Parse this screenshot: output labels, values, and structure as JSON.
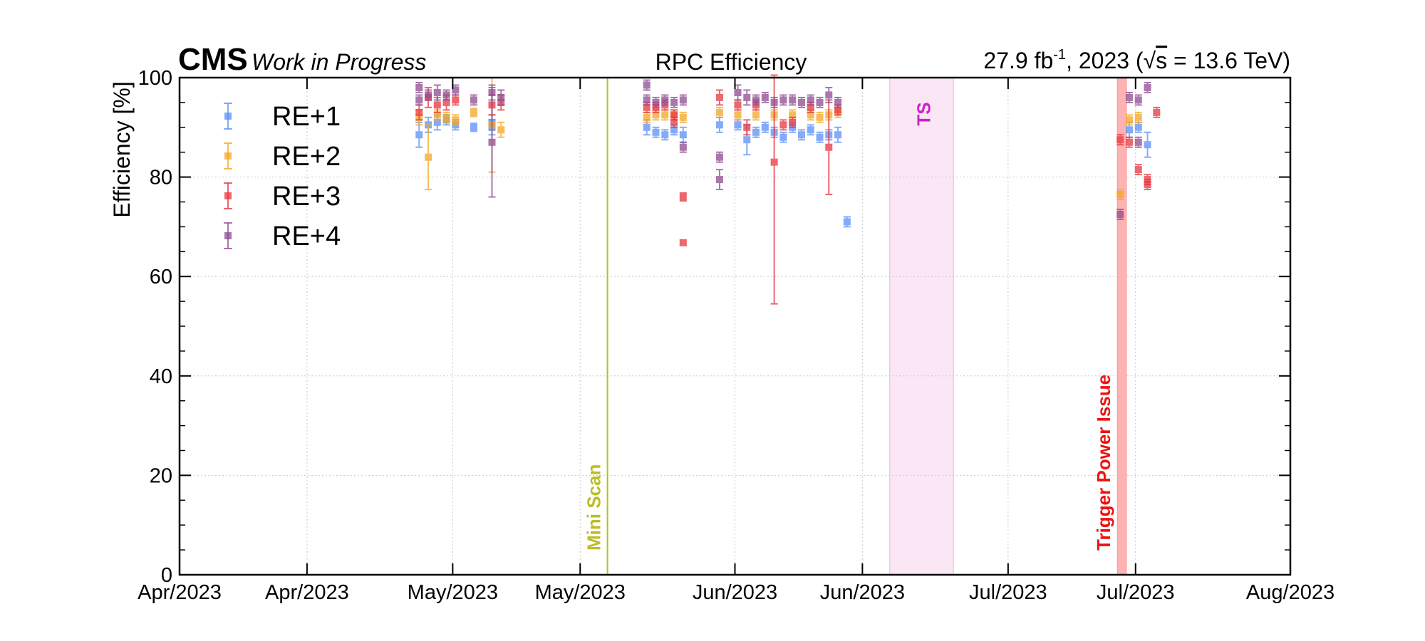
{
  "chart_data": {
    "type": "scatter",
    "title": "RPC Efficiency",
    "experiment": "CMS",
    "experiment_note": "Work in Progress",
    "lumi_prefix": "27.9 fb",
    "lumi_sup": "-1",
    "lumi_mid": ", 2023 (",
    "sqrt_arg": "s",
    "lumi_energy": " = 13.6 TeV)",
    "ylabel": "Efficiency [%]",
    "xlabel": "",
    "ylim": [
      0,
      100
    ],
    "xlim": [
      "2023-04-01",
      "2023-08-01"
    ],
    "y_ticks": [
      "0",
      "20",
      "40",
      "60",
      "80",
      "100"
    ],
    "x_ticks": [
      {
        "date": "2023-04-01",
        "label": "Apr/2023"
      },
      {
        "date": "2023-04-15",
        "label": "Apr/2023"
      },
      {
        "date": "2023-05-01",
        "label": "May/2023"
      },
      {
        "date": "2023-05-15",
        "label": "May/2023"
      },
      {
        "date": "2023-06-01",
        "label": "Jun/2023"
      },
      {
        "date": "2023-06-15",
        "label": "Jun/2023"
      },
      {
        "date": "2023-07-01",
        "label": "Jul/2023"
      },
      {
        "date": "2023-07-15",
        "label": "Jul/2023"
      },
      {
        "date": "2023-08-01",
        "label": "Aug/2023"
      }
    ],
    "grid": true,
    "legend_position": "top-left",
    "annotations": [
      {
        "type": "line",
        "date": "2023-05-18",
        "label": "Mini Scan",
        "color": "#bcbd22"
      },
      {
        "type": "band",
        "start": "2023-06-18",
        "end": "2023-06-25",
        "label": "TS",
        "color": "#e377c2",
        "label_color": "#cc22cc"
      },
      {
        "type": "band",
        "start": "2023-07-13",
        "end": "2023-07-14",
        "label": "Trigger Power Issue",
        "color": "#ff5555",
        "label_color": "#ee1111"
      }
    ],
    "series": [
      {
        "name": "RE+1",
        "color": "#5b8ff9",
        "points": [
          {
            "x": "2023-04-27",
            "y": 88.5,
            "err": 2.5
          },
          {
            "x": "2023-04-28",
            "y": 90.5,
            "err": 1.5
          },
          {
            "x": "2023-04-29",
            "y": 91.0,
            "err": 1.5
          },
          {
            "x": "2023-04-30",
            "y": 91.5,
            "err": 1.0
          },
          {
            "x": "2023-05-01",
            "y": 90.5,
            "err": 1.0
          },
          {
            "x": "2023-05-03",
            "y": 90.0,
            "err": 0.8
          },
          {
            "x": "2023-05-05",
            "y": 91.0,
            "err": 1.5
          },
          {
            "x": "2023-05-05",
            "y": 90.0,
            "err": 1.5
          },
          {
            "x": "2023-05-22",
            "y": 90.0,
            "err": 1.5
          },
          {
            "x": "2023-05-23",
            "y": 89.0,
            "err": 1.0
          },
          {
            "x": "2023-05-24",
            "y": 88.5,
            "err": 1.0
          },
          {
            "x": "2023-05-25",
            "y": 89.5,
            "err": 1.0
          },
          {
            "x": "2023-05-26",
            "y": 88.5,
            "err": 1.5
          },
          {
            "x": "2023-05-30",
            "y": 90.5,
            "err": 1.5
          },
          {
            "x": "2023-06-01",
            "y": 90.5,
            "err": 1.0
          },
          {
            "x": "2023-06-02",
            "y": 87.5,
            "err": 3.0
          },
          {
            "x": "2023-06-03",
            "y": 89.0,
            "err": 1.0
          },
          {
            "x": "2023-06-04",
            "y": 90.0,
            "err": 1.0
          },
          {
            "x": "2023-06-05",
            "y": 89.0,
            "err": 1.0
          },
          {
            "x": "2023-06-06",
            "y": 88.0,
            "err": 1.0
          },
          {
            "x": "2023-06-07",
            "y": 90.0,
            "err": 1.0
          },
          {
            "x": "2023-06-08",
            "y": 88.5,
            "err": 1.0
          },
          {
            "x": "2023-06-09",
            "y": 89.5,
            "err": 1.0
          },
          {
            "x": "2023-06-10",
            "y": 88.0,
            "err": 1.0
          },
          {
            "x": "2023-06-11",
            "y": 88.5,
            "err": 1.0
          },
          {
            "x": "2023-06-12",
            "y": 88.5,
            "err": 1.5
          },
          {
            "x": "2023-06-13",
            "y": 71.0,
            "err": 1.0
          },
          {
            "x": "2023-07-14",
            "y": 89.5,
            "err": 1.5
          },
          {
            "x": "2023-07-15",
            "y": 90.0,
            "err": 1.0
          },
          {
            "x": "2023-07-16",
            "y": 86.5,
            "err": 2.5
          }
        ]
      },
      {
        "name": "RE+2",
        "color": "#f5a623",
        "points": [
          {
            "x": "2023-04-27",
            "y": 92.0,
            "err": 1.5
          },
          {
            "x": "2023-04-28",
            "y": 84.0,
            "err": 6.5
          },
          {
            "x": "2023-04-29",
            "y": 92.5,
            "err": 1.0
          },
          {
            "x": "2023-04-30",
            "y": 92.0,
            "err": 1.0
          },
          {
            "x": "2023-05-01",
            "y": 91.5,
            "err": 1.0
          },
          {
            "x": "2023-05-03",
            "y": 93.0,
            "err": 0.8
          },
          {
            "x": "2023-05-05",
            "y": 90.5,
            "err": 9.5
          },
          {
            "x": "2023-05-06",
            "y": 89.5,
            "err": 1.5
          },
          {
            "x": "2023-05-22",
            "y": 92.0,
            "err": 1.0
          },
          {
            "x": "2023-05-23",
            "y": 92.5,
            "err": 1.0
          },
          {
            "x": "2023-05-24",
            "y": 92.5,
            "err": 1.0
          },
          {
            "x": "2023-05-25",
            "y": 92.5,
            "err": 1.0
          },
          {
            "x": "2023-05-26",
            "y": 92.0,
            "err": 1.0
          },
          {
            "x": "2023-05-30",
            "y": 93.0,
            "err": 1.0
          },
          {
            "x": "2023-06-01",
            "y": 92.5,
            "err": 1.0
          },
          {
            "x": "2023-06-03",
            "y": 92.5,
            "err": 1.0
          },
          {
            "x": "2023-06-05",
            "y": 92.5,
            "err": 1.0
          },
          {
            "x": "2023-06-07",
            "y": 92.5,
            "err": 1.0
          },
          {
            "x": "2023-06-09",
            "y": 92.5,
            "err": 1.0
          },
          {
            "x": "2023-06-10",
            "y": 92.0,
            "err": 1.0
          },
          {
            "x": "2023-06-11",
            "y": 92.5,
            "err": 1.0
          },
          {
            "x": "2023-06-12",
            "y": 93.0,
            "err": 1.0
          },
          {
            "x": "2023-07-13",
            "y": 76.5,
            "err": 1.0
          },
          {
            "x": "2023-07-14",
            "y": 91.5,
            "err": 1.0
          },
          {
            "x": "2023-07-15",
            "y": 92.0,
            "err": 1.0
          }
        ]
      },
      {
        "name": "RE+3",
        "color": "#e8353e",
        "points": [
          {
            "x": "2023-04-27",
            "y": 93.0,
            "err": 1.5
          },
          {
            "x": "2023-04-28",
            "y": 96.0,
            "err": 2.0
          },
          {
            "x": "2023-04-29",
            "y": 94.5,
            "err": 1.5
          },
          {
            "x": "2023-04-30",
            "y": 95.0,
            "err": 1.5
          },
          {
            "x": "2023-05-01",
            "y": 95.5,
            "err": 1.0
          },
          {
            "x": "2023-05-05",
            "y": 94.5,
            "err": 2.0
          },
          {
            "x": "2023-05-06",
            "y": 95.0,
            "err": 1.5
          },
          {
            "x": "2023-05-22",
            "y": 94.0,
            "err": 1.0
          },
          {
            "x": "2023-05-23",
            "y": 94.0,
            "err": 1.0
          },
          {
            "x": "2023-05-24",
            "y": 94.5,
            "err": 1.0
          },
          {
            "x": "2023-05-25",
            "y": 91.0,
            "err": 1.0
          },
          {
            "x": "2023-05-25",
            "y": 92.5,
            "err": 1.0
          },
          {
            "x": "2023-05-26",
            "y": 76.0,
            "err": 0.8
          },
          {
            "x": "2023-05-26",
            "y": 66.8,
            "err": 0.5
          },
          {
            "x": "2023-05-30",
            "y": 96.0,
            "err": 1.5
          },
          {
            "x": "2023-06-01",
            "y": 94.5,
            "err": 1.0
          },
          {
            "x": "2023-06-02",
            "y": 90.0,
            "err": 1.5
          },
          {
            "x": "2023-06-03",
            "y": 94.5,
            "err": 1.0
          },
          {
            "x": "2023-06-05",
            "y": 83.0,
            "err": 28.5
          },
          {
            "x": "2023-06-06",
            "y": 90.5,
            "err": 1.0
          },
          {
            "x": "2023-06-07",
            "y": 91.0,
            "err": 1.0
          },
          {
            "x": "2023-06-09",
            "y": 94.0,
            "err": 1.0
          },
          {
            "x": "2023-06-11",
            "y": 86.0,
            "err": 9.5
          },
          {
            "x": "2023-06-12",
            "y": 93.5,
            "err": 1.0
          },
          {
            "x": "2023-07-13",
            "y": 87.5,
            "err": 1.0
          },
          {
            "x": "2023-07-14",
            "y": 87.0,
            "err": 1.0
          },
          {
            "x": "2023-07-15",
            "y": 81.5,
            "err": 1.0
          },
          {
            "x": "2023-07-16",
            "y": 79.5,
            "err": 1.0
          },
          {
            "x": "2023-07-16",
            "y": 78.5,
            "err": 1.0
          },
          {
            "x": "2023-07-17",
            "y": 93.0,
            "err": 1.0
          }
        ]
      },
      {
        "name": "RE+4",
        "color": "#8e4a91",
        "points": [
          {
            "x": "2023-04-27",
            "y": 98.0,
            "err": 1.0
          },
          {
            "x": "2023-04-27",
            "y": 95.5,
            "err": 1.0
          },
          {
            "x": "2023-04-28",
            "y": 96.5,
            "err": 1.0
          },
          {
            "x": "2023-04-29",
            "y": 97.0,
            "err": 1.5
          },
          {
            "x": "2023-04-30",
            "y": 96.5,
            "err": 1.0
          },
          {
            "x": "2023-05-01",
            "y": 97.5,
            "err": 1.0
          },
          {
            "x": "2023-05-03",
            "y": 95.5,
            "err": 1.0
          },
          {
            "x": "2023-05-05",
            "y": 87.0,
            "err": 11.0
          },
          {
            "x": "2023-05-05",
            "y": 97.0,
            "err": 1.5
          },
          {
            "x": "2023-05-06",
            "y": 96.0,
            "err": 1.5
          },
          {
            "x": "2023-05-22",
            "y": 98.5,
            "err": 1.0
          },
          {
            "x": "2023-05-22",
            "y": 95.5,
            "err": 1.0
          },
          {
            "x": "2023-05-23",
            "y": 95.0,
            "err": 1.0
          },
          {
            "x": "2023-05-24",
            "y": 95.5,
            "err": 1.0
          },
          {
            "x": "2023-05-25",
            "y": 95.0,
            "err": 1.0
          },
          {
            "x": "2023-05-26",
            "y": 95.5,
            "err": 1.0
          },
          {
            "x": "2023-05-26",
            "y": 86.0,
            "err": 1.0
          },
          {
            "x": "2023-05-30",
            "y": 84.0,
            "err": 1.0
          },
          {
            "x": "2023-05-30",
            "y": 79.5,
            "err": 2.0
          },
          {
            "x": "2023-06-01",
            "y": 97.0,
            "err": 1.5
          },
          {
            "x": "2023-06-02",
            "y": 96.0,
            "err": 1.5
          },
          {
            "x": "2023-06-03",
            "y": 95.5,
            "err": 1.0
          },
          {
            "x": "2023-06-04",
            "y": 96.0,
            "err": 1.0
          },
          {
            "x": "2023-06-05",
            "y": 95.0,
            "err": 1.0
          },
          {
            "x": "2023-06-06",
            "y": 95.5,
            "err": 1.0
          },
          {
            "x": "2023-06-07",
            "y": 95.5,
            "err": 1.0
          },
          {
            "x": "2023-06-08",
            "y": 95.0,
            "err": 1.0
          },
          {
            "x": "2023-06-09",
            "y": 95.5,
            "err": 1.0
          },
          {
            "x": "2023-06-10",
            "y": 95.0,
            "err": 1.0
          },
          {
            "x": "2023-06-11",
            "y": 96.5,
            "err": 1.5
          },
          {
            "x": "2023-06-12",
            "y": 95.0,
            "err": 1.0
          },
          {
            "x": "2023-07-13",
            "y": 72.5,
            "err": 1.0
          },
          {
            "x": "2023-07-14",
            "y": 96.0,
            "err": 1.0
          },
          {
            "x": "2023-07-15",
            "y": 87.0,
            "err": 1.0
          },
          {
            "x": "2023-07-15",
            "y": 95.5,
            "err": 1.0
          },
          {
            "x": "2023-07-16",
            "y": 98.0,
            "err": 1.0
          }
        ]
      }
    ]
  }
}
